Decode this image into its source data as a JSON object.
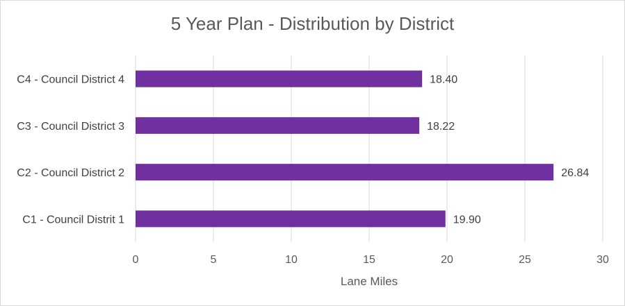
{
  "chart_data": {
    "type": "bar",
    "orientation": "horizontal",
    "title": "5 Year Plan - Distribution by District",
    "xlabel": "Lane Miles",
    "ylabel": "",
    "categories": [
      "C4 - Council District 4",
      "C3 - Council District 3",
      "C2 - Council District 2",
      "C1 - Council Distrit 1"
    ],
    "values": [
      18.4,
      18.22,
      26.84,
      19.9
    ],
    "data_labels": [
      "18.40",
      "18.22",
      "26.84",
      "19.90"
    ],
    "xlim": [
      0,
      30
    ],
    "x_ticks": [
      0,
      5,
      10,
      15,
      20,
      25,
      30
    ],
    "grid": "vertical major gridlines",
    "legend": "none",
    "bar_color": "#7030a0",
    "grid_color": "#d9d9d9"
  }
}
